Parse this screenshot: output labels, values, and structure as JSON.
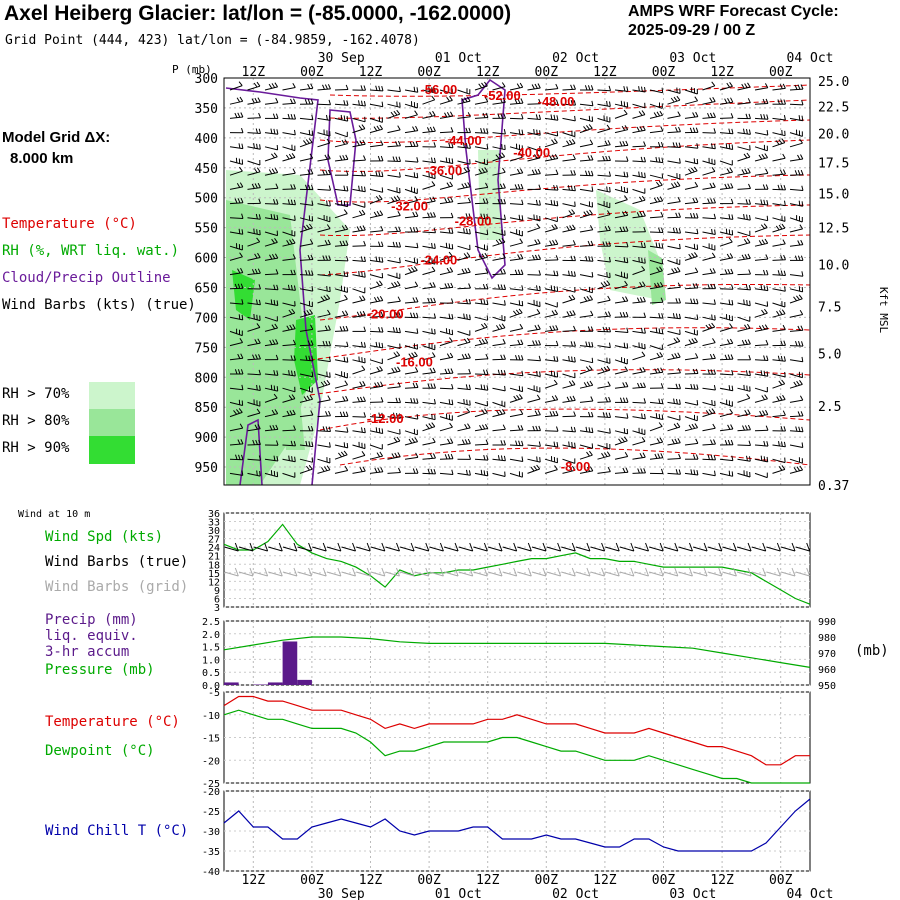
{
  "header": {
    "title": "Axel Heiberg Glacier:  lat/lon = (-85.0000, -162.0000)",
    "subtitle": "Grid Point (444, 423) lat/lon = (-84.9859, -162.4078)",
    "cycle_line1": "AMPS WRF Forecast Cycle:",
    "cycle_line2": "2025-09-29 / 00  Z",
    "grid_label_1": "Model Grid ΔX:",
    "grid_label_2": "8.000 km"
  },
  "colors": {
    "temperature": "#dd0000",
    "rh": "#00aa00",
    "cloud_outline": "#6a1b9a",
    "wind": "#000000",
    "wind_grid": "#aaaaaa",
    "precip": "#5b1a8a",
    "windchill": "#0000aa",
    "rh70": "#ccf5cc",
    "rh80": "#99e699",
    "rh90": "#33dd33"
  },
  "legend": {
    "temperature": "Temperature (°C)",
    "rh": "RH (%, WRT liq. wat.)",
    "cloud": "Cloud/Precip Outline",
    "wind": "Wind Barbs (kts) (true)",
    "rh70": "RH > 70%",
    "rh80": "RH > 80%",
    "rh90": "RH > 90%"
  },
  "panel_labels": {
    "wind_at_10m": "Wind at 10 m",
    "wind_spd": "Wind Spd (kts)",
    "wind_barbs_true": "Wind Barbs (true)",
    "wind_barbs_grid": "Wind Barbs (grid)",
    "precip_1": "Precip (mm)",
    "precip_2": "liq. equiv.",
    "precip_3": "3-hr accum",
    "pressure": "Pressure (mb)",
    "pressure_unit": "(mb)",
    "temperature": "Temperature (°C)",
    "dewpoint": "Dewpoint (°C)",
    "windchill": "Wind Chill T (°C)"
  },
  "chart_data": [
    {
      "type": "time-height cross section",
      "x_range_hours": [
        0,
        120
      ],
      "time_ticks": [
        "12Z",
        "00Z",
        "12Z",
        "00Z",
        "12Z",
        "00Z",
        "12Z",
        "00Z",
        "12Z",
        "00Z"
      ],
      "time_tick_hours": [
        6,
        18,
        30,
        42,
        54,
        66,
        78,
        90,
        102,
        114
      ],
      "date_labels": [
        "30 Sep",
        "01 Oct",
        "02 Oct",
        "03 Oct",
        "04 Oct"
      ],
      "date_label_hours": [
        24,
        48,
        72,
        96,
        120
      ],
      "ylabel": "P (mb)",
      "pressure_levels": [
        "300",
        "350",
        "400",
        "450",
        "500",
        "550",
        "600",
        "650",
        "700",
        "750",
        "800",
        "850",
        "900",
        "950"
      ],
      "height_axis_label": "Kft MSL",
      "height_ticks": [
        "25.0",
        "22.5",
        "20.0",
        "17.5",
        "15.0",
        "12.5",
        "10.0",
        "7.5",
        "5.0",
        "2.5",
        "0.37"
      ],
      "height_tick_pressures": [
        305,
        348,
        393,
        441,
        493,
        550,
        612,
        682,
        760,
        848,
        980
      ],
      "temperature_labels": [
        {
          "text": "-56.00",
          "hour": 44,
          "p": 320
        },
        {
          "text": "-52.00",
          "hour": 57,
          "p": 330
        },
        {
          "text": "-48.00",
          "hour": 68,
          "p": 340
        },
        {
          "text": "-44.00",
          "hour": 49,
          "p": 405
        },
        {
          "text": "-40.00",
          "hour": 63,
          "p": 425
        },
        {
          "text": "-36.00",
          "hour": 45,
          "p": 455
        },
        {
          "text": "-32.00",
          "hour": 38,
          "p": 515
        },
        {
          "text": "-28.00",
          "hour": 51,
          "p": 540
        },
        {
          "text": "-24.00",
          "hour": 44,
          "p": 605
        },
        {
          "text": "-20.00",
          "hour": 33,
          "p": 695
        },
        {
          "text": "-16.00",
          "hour": 39,
          "p": 775
        },
        {
          "text": "-12.00",
          "hour": 33,
          "p": 870
        },
        {
          "text": "-8.00",
          "hour": 72,
          "p": 950
        }
      ]
    },
    {
      "type": "line",
      "title": "Wind Spd (kts)",
      "yticks": [
        3,
        6,
        9,
        12,
        15,
        18,
        21,
        24,
        27,
        30,
        33,
        36
      ],
      "ylim": [
        3,
        36
      ],
      "x_hours": [
        0,
        3,
        6,
        9,
        12,
        15,
        18,
        21,
        24,
        27,
        30,
        33,
        36,
        39,
        42,
        45,
        48,
        51,
        54,
        57,
        60,
        63,
        66,
        69,
        72,
        75,
        78,
        81,
        84,
        87,
        90,
        93,
        96,
        99,
        102,
        105,
        108,
        111,
        114,
        117,
        120
      ],
      "values": [
        25,
        23,
        23,
        26,
        32,
        25,
        22,
        20,
        19,
        17,
        14,
        10,
        16,
        14,
        15,
        15,
        16,
        16,
        17,
        18,
        19,
        20,
        20,
        21,
        22,
        20,
        20,
        19,
        19,
        18,
        17,
        17,
        17,
        17,
        17,
        16,
        15,
        12,
        9,
        6,
        4
      ],
      "barbs_true_speed_kts": 24,
      "barbs_grid_speed_kts": 15
    },
    {
      "type": "bar+line",
      "title": "Precip (mm) / Pressure (mb)",
      "precip_yticks": [
        "2.5",
        "2.0",
        "1.5",
        "1.0",
        "0.5",
        "0.0"
      ],
      "precip_ylim": [
        0,
        2.5
      ],
      "pressure_yticks": [
        "990",
        "980",
        "970",
        "960",
        "950"
      ],
      "pressure_ylim": [
        950,
        990
      ],
      "precip": [
        {
          "start_hour": 0,
          "end_hour": 3,
          "value": 0.1
        },
        {
          "start_hour": 6,
          "end_hour": 9,
          "value": 0.02
        },
        {
          "start_hour": 9,
          "end_hour": 12,
          "value": 0.1
        },
        {
          "start_hour": 12,
          "end_hour": 15,
          "value": 1.7
        },
        {
          "start_hour": 15,
          "end_hour": 18,
          "value": 0.2
        }
      ],
      "pressure_x_hours": [
        0,
        6,
        12,
        18,
        24,
        30,
        36,
        42,
        48,
        54,
        60,
        66,
        72,
        78,
        84,
        90,
        96,
        102,
        108,
        114,
        120
      ],
      "pressure_values": [
        972,
        975,
        978,
        980,
        980,
        979,
        977,
        976,
        976,
        976,
        976,
        976,
        976,
        976,
        975,
        974,
        973,
        970,
        967,
        964,
        961
      ]
    },
    {
      "type": "line",
      "title": "Temperature / Dewpoint (°C)",
      "yticks": [
        -5,
        -10,
        -15,
        -20,
        -25
      ],
      "ylim": [
        -25,
        -5
      ],
      "x_hours": [
        0,
        3,
        6,
        9,
        12,
        15,
        18,
        21,
        24,
        27,
        30,
        33,
        36,
        39,
        42,
        45,
        48,
        51,
        54,
        57,
        60,
        63,
        66,
        69,
        72,
        75,
        78,
        81,
        84,
        87,
        90,
        93,
        96,
        99,
        102,
        105,
        108,
        111,
        114,
        117,
        120
      ],
      "temperature": [
        -8,
        -6,
        -6,
        -7,
        -7,
        -8,
        -9,
        -9,
        -9,
        -10,
        -11,
        -13,
        -12,
        -13,
        -12,
        -12,
        -12,
        -12,
        -11,
        -11,
        -10,
        -11,
        -12,
        -12,
        -12,
        -13,
        -14,
        -14,
        -14,
        -13,
        -14,
        -15,
        -16,
        -17,
        -17,
        -18,
        -19,
        -21,
        -21,
        -19,
        -19
      ],
      "dewpoint": [
        -10,
        -9,
        -10,
        -11,
        -11,
        -12,
        -13,
        -13,
        -13,
        -14,
        -16,
        -19,
        -18,
        -18,
        -17,
        -16,
        -16,
        -16,
        -16,
        -15,
        -15,
        -16,
        -17,
        -18,
        -18,
        -19,
        -20,
        -20,
        -20,
        -19,
        -20,
        -21,
        -22,
        -23,
        -24,
        -24,
        -25,
        -25,
        -25,
        -25,
        -25
      ]
    },
    {
      "type": "line",
      "title": "Wind Chill T (°C)",
      "yticks": [
        -20,
        -25,
        -30,
        -35,
        -40
      ],
      "ylim": [
        -40,
        -20
      ],
      "x_hours": [
        0,
        3,
        6,
        9,
        12,
        15,
        18,
        21,
        24,
        27,
        30,
        33,
        36,
        39,
        42,
        45,
        48,
        51,
        54,
        57,
        60,
        63,
        66,
        69,
        72,
        75,
        78,
        81,
        84,
        87,
        90,
        93,
        96,
        99,
        102,
        105,
        108,
        111,
        114,
        117,
        120
      ],
      "values": [
        -28,
        -25,
        -29,
        -29,
        -32,
        -32,
        -29,
        -28,
        -27,
        -28,
        -29,
        -27,
        -30,
        -31,
        -30,
        -30,
        -30,
        -29,
        -29,
        -32,
        -32,
        -32,
        -31,
        -32,
        -32,
        -33,
        -34,
        -34,
        -32,
        -32,
        -34,
        -35,
        -35,
        -35,
        -35,
        -35,
        -35,
        -33,
        -29,
        -25,
        -22
      ]
    }
  ]
}
